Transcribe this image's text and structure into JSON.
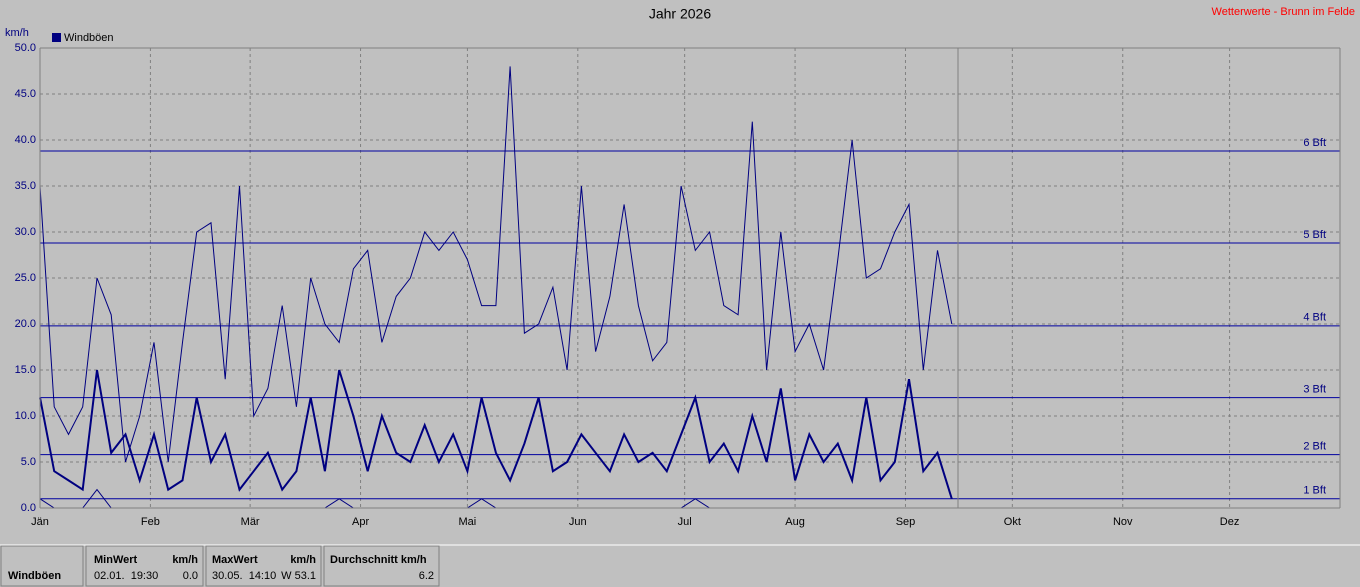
{
  "chart_data": {
    "type": "line",
    "title": "Jahr 2026",
    "source": "Wetterwerte - Brunn im Felde",
    "ylabel": "km/h",
    "xlim": [
      0,
      365
    ],
    "ylim": [
      0,
      50
    ],
    "xticks": [
      {
        "value": 0,
        "label": "Jän"
      },
      {
        "value": 31,
        "label": "Feb"
      },
      {
        "value": 59,
        "label": "Mär"
      },
      {
        "value": 90,
        "label": "Apr"
      },
      {
        "value": 120,
        "label": "Mai"
      },
      {
        "value": 151,
        "label": "Jun"
      },
      {
        "value": 181,
        "label": "Jul"
      },
      {
        "value": 212,
        "label": "Aug"
      },
      {
        "value": 243,
        "label": "Sep"
      },
      {
        "value": 273,
        "label": "Okt"
      },
      {
        "value": 304,
        "label": "Nov"
      },
      {
        "value": 334,
        "label": "Dez"
      }
    ],
    "yticks": [
      {
        "value": 0,
        "label": "0.0"
      },
      {
        "value": 5,
        "label": "5.0"
      },
      {
        "value": 10,
        "label": "10.0"
      },
      {
        "value": 15,
        "label": "15.0"
      },
      {
        "value": 20,
        "label": "20.0"
      },
      {
        "value": 25,
        "label": "25.0"
      },
      {
        "value": 30,
        "label": "30.0"
      },
      {
        "value": 35,
        "label": "35.0"
      },
      {
        "value": 40,
        "label": "40.0"
      },
      {
        "value": 45,
        "label": "45.0"
      },
      {
        "value": 50,
        "label": "50.0"
      }
    ],
    "grid": true,
    "reference_lines": [
      {
        "value": 1.0,
        "label": "1 Bft"
      },
      {
        "value": 5.8,
        "label": "2 Bft"
      },
      {
        "value": 12.0,
        "label": "3 Bft"
      },
      {
        "value": 19.8,
        "label": "4 Bft"
      },
      {
        "value": 28.8,
        "label": "5 Bft"
      },
      {
        "value": 38.8,
        "label": "6 Bft"
      }
    ],
    "x": [
      0,
      4,
      8,
      12,
      16,
      20,
      24,
      28,
      32,
      36,
      40,
      44,
      48,
      52,
      56,
      60,
      64,
      68,
      72,
      76,
      80,
      84,
      88,
      92,
      96,
      100,
      104,
      108,
      112,
      116,
      120,
      124,
      128,
      132,
      136,
      140,
      144,
      148,
      152,
      156,
      160,
      164,
      168,
      172,
      176,
      180,
      184,
      188,
      192,
      196,
      200,
      204,
      208,
      212,
      216,
      220,
      224,
      228,
      232,
      236,
      240,
      244,
      248,
      252,
      256
    ],
    "series": [
      {
        "name": "Windböen",
        "color": "#000080",
        "values": [
          35,
          11,
          8,
          11,
          25,
          21,
          5,
          10,
          18,
          5,
          18,
          30,
          31,
          14,
          35,
          10,
          13,
          22,
          11,
          25,
          20,
          18,
          26,
          28,
          18,
          23,
          25,
          30,
          28,
          30,
          27,
          22,
          22,
          48,
          19,
          20,
          24,
          15,
          35,
          17,
          23,
          33,
          22,
          16,
          18,
          35,
          28,
          30,
          22,
          21,
          42,
          15,
          30,
          17,
          20,
          15,
          27,
          40,
          25,
          26,
          30,
          33,
          15,
          28,
          20
        ]
      },
      {
        "color": "#000080",
        "values": [
          12,
          4,
          3,
          2,
          15,
          6,
          8,
          3,
          8,
          2,
          3,
          12,
          5,
          8,
          2,
          4,
          6,
          2,
          4,
          12,
          4,
          15,
          10,
          4,
          10,
          6,
          5,
          9,
          5,
          8,
          4,
          12,
          6,
          3,
          7,
          12,
          4,
          5,
          8,
          6,
          4,
          8,
          5,
          6,
          4,
          8,
          12,
          5,
          7,
          4,
          10,
          5,
          13,
          3,
          8,
          5,
          7,
          3,
          12,
          3,
          5,
          14,
          4,
          6,
          1
        ]
      },
      {
        "color": "#000080",
        "values": [
          1,
          0,
          0,
          0,
          2,
          0,
          0,
          0,
          0,
          0,
          0,
          0,
          0,
          0,
          0,
          0,
          0,
          0,
          0,
          0,
          0,
          1,
          0,
          0,
          0,
          0,
          0,
          0,
          0,
          0,
          0,
          1,
          0,
          0,
          0,
          0,
          0,
          0,
          0,
          0,
          0,
          0,
          0,
          0,
          0,
          0,
          1,
          0,
          0,
          0,
          0,
          0,
          0,
          0,
          0,
          0,
          0,
          0,
          0,
          0,
          0,
          0,
          0,
          0,
          0
        ]
      }
    ],
    "legend": "top-left"
  },
  "stats": {
    "name": "Windböen",
    "min": {
      "header": "MinWert",
      "unit": "km/h",
      "time": "02.01.  19:30",
      "value": "0.0"
    },
    "max": {
      "header": "MaxWert",
      "unit": "km/h",
      "time": "30.05.  14:10",
      "value": "W 53.1"
    },
    "avg": {
      "header": "Durchschnitt km/h",
      "value": "6.2"
    }
  }
}
